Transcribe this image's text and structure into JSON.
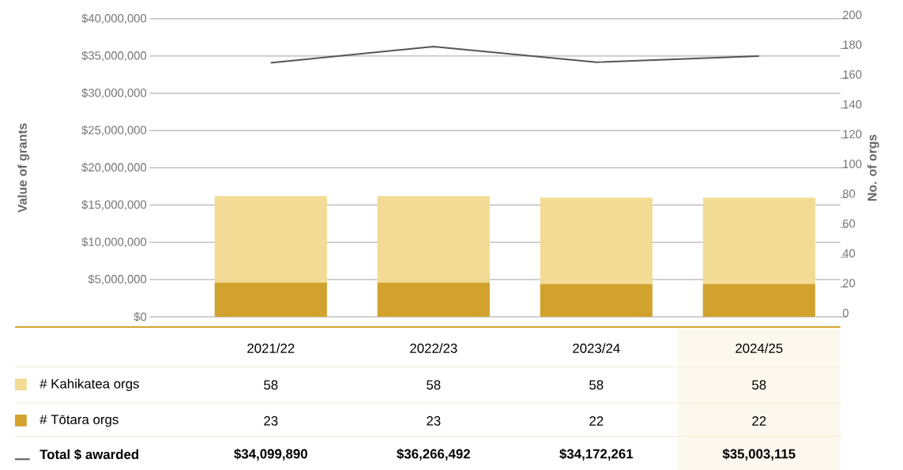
{
  "chart_data": {
    "type": "bar",
    "stacked": true,
    "categories": [
      "2021/22",
      "2022/23",
      "2023/24",
      "2024/25"
    ],
    "series": [
      {
        "name": "# Tōtara orgs",
        "axis": "y2",
        "color": "#d1a22d",
        "values": [
          23,
          23,
          22,
          22
        ],
        "value_labels": [
          "23",
          "23",
          "22",
          "22"
        ]
      },
      {
        "name": "# Kahikatea orgs",
        "axis": "y2",
        "color": "#f2db94",
        "values": [
          58,
          58,
          58,
          58
        ],
        "value_labels": [
          "58",
          "58",
          "58",
          "58"
        ]
      },
      {
        "name": "Total $ awarded",
        "type": "line",
        "axis": "y",
        "color": "#555555",
        "values": [
          34099890,
          36266492,
          34172261,
          35003115
        ],
        "value_labels": [
          "$34,099,890",
          "$36,266,492",
          "$34,172,261",
          "$35,003,115"
        ]
      }
    ],
    "ylabel": "Value of grants",
    "y2label": "No. of orgs",
    "ylim": [
      0,
      40000000
    ],
    "yticks": [
      {
        "value": 0,
        "label": "$0"
      },
      {
        "value": 5000000,
        "label": "$5,000,000"
      },
      {
        "value": 10000000,
        "label": "$10,000,000"
      },
      {
        "value": 15000000,
        "label": "$15,000,000"
      },
      {
        "value": 20000000,
        "label": "$20,000,000"
      },
      {
        "value": 25000000,
        "label": "$25,000,000"
      },
      {
        "value": 30000000,
        "label": "$30,000,000"
      },
      {
        "value": 35000000,
        "label": "$35,000,000"
      },
      {
        "value": 40000000,
        "label": "$40,000,000"
      }
    ],
    "y2lim": [
      0,
      200
    ],
    "y2ticks": [
      0,
      20,
      40,
      60,
      80,
      100,
      120,
      140,
      160,
      180,
      200
    ],
    "grid": "y",
    "legend": "bottom",
    "marker": "none",
    "line_style": "solid"
  }
}
